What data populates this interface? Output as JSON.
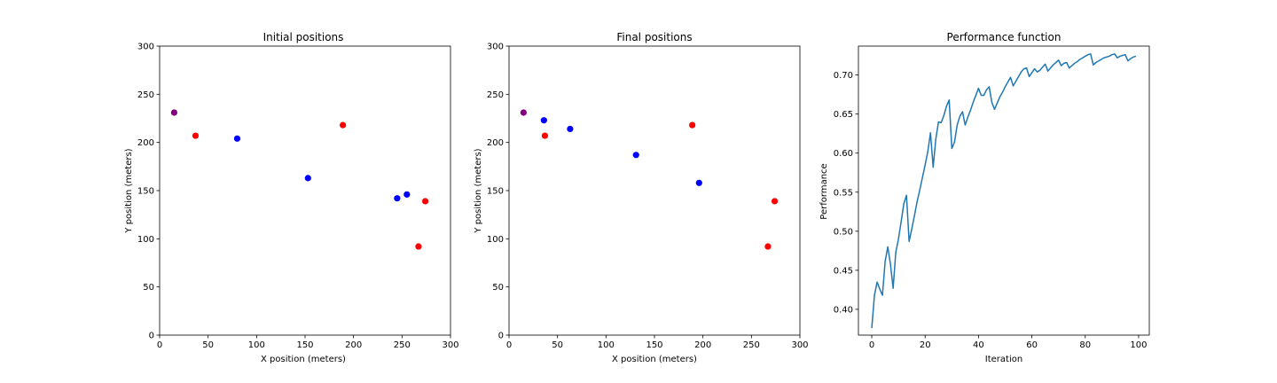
{
  "chart_data": [
    {
      "type": "scatter",
      "title": "Initial positions",
      "xlabel": "X position (meters)",
      "ylabel": "Y position (meters)",
      "xlim": [
        0,
        300
      ],
      "ylim": [
        0,
        300
      ],
      "xticks": [
        0,
        50,
        100,
        150,
        200,
        250,
        300
      ],
      "yticks": [
        0,
        50,
        100,
        150,
        200,
        250,
        300
      ],
      "grid": false,
      "series": [
        {
          "color": "#ff0000",
          "points": [
            [
              37,
              207
            ],
            [
              189,
              218
            ],
            [
              274,
              139
            ],
            [
              267,
              92
            ]
          ]
        },
        {
          "color": "#0000ff",
          "points": [
            [
              80,
              204
            ],
            [
              153,
              163
            ],
            [
              245,
              142
            ],
            [
              255,
              146
            ]
          ]
        },
        {
          "color": "#800080",
          "points": [
            [
              15,
              231
            ]
          ]
        }
      ]
    },
    {
      "type": "scatter",
      "title": "Final positions",
      "xlabel": "X position (meters)",
      "ylabel": "Y position (meters)",
      "xlim": [
        0,
        300
      ],
      "ylim": [
        0,
        300
      ],
      "xticks": [
        0,
        50,
        100,
        150,
        200,
        250,
        300
      ],
      "yticks": [
        0,
        50,
        100,
        150,
        200,
        250,
        300
      ],
      "grid": false,
      "series": [
        {
          "color": "#ff0000",
          "points": [
            [
              37,
              207
            ],
            [
              189,
              218
            ],
            [
              274,
              139
            ],
            [
              267,
              92
            ]
          ]
        },
        {
          "color": "#0000ff",
          "points": [
            [
              36,
              223
            ],
            [
              63,
              214
            ],
            [
              131,
              187
            ],
            [
              196,
              158
            ]
          ]
        },
        {
          "color": "#800080",
          "points": [
            [
              15,
              231
            ]
          ]
        }
      ]
    },
    {
      "type": "line",
      "title": "Performance function",
      "xlabel": "Iteration",
      "ylabel": "Performance",
      "xlim": [
        -5,
        104
      ],
      "ylim": [
        0.367,
        0.737
      ],
      "xticks": [
        0,
        20,
        40,
        60,
        80,
        100
      ],
      "yticks": [
        "0.40",
        "0.45",
        "0.50",
        "0.55",
        "0.60",
        "0.65",
        "0.70"
      ],
      "grid": false,
      "series": [
        {
          "color": "#1f77b4",
          "x": [
            0,
            1,
            2,
            3,
            4,
            5,
            6,
            7,
            8,
            9,
            10,
            11,
            12,
            13,
            14,
            15,
            16,
            17,
            18,
            19,
            20,
            21,
            22,
            23,
            24,
            25,
            26,
            27,
            28,
            29,
            30,
            31,
            32,
            33,
            34,
            35,
            36,
            37,
            38,
            39,
            40,
            41,
            42,
            43,
            44,
            45,
            46,
            47,
            48,
            49,
            50,
            51,
            52,
            53,
            54,
            55,
            56,
            57,
            58,
            59,
            60,
            61,
            62,
            63,
            64,
            65,
            66,
            67,
            68,
            69,
            70,
            71,
            72,
            73,
            74,
            75,
            76,
            77,
            78,
            79,
            80,
            81,
            82,
            83,
            84,
            85,
            86,
            87,
            88,
            89,
            90,
            91,
            92,
            93,
            94,
            95,
            96,
            97,
            98,
            99
          ],
          "y": [
            0.376,
            0.418,
            0.435,
            0.426,
            0.418,
            0.461,
            0.48,
            0.458,
            0.427,
            0.473,
            0.49,
            0.512,
            0.535,
            0.546,
            0.487,
            0.503,
            0.52,
            0.538,
            0.553,
            0.569,
            0.585,
            0.602,
            0.626,
            0.582,
            0.618,
            0.64,
            0.639,
            0.648,
            0.66,
            0.668,
            0.606,
            0.614,
            0.636,
            0.647,
            0.653,
            0.636,
            0.646,
            0.655,
            0.665,
            0.674,
            0.683,
            0.674,
            0.674,
            0.681,
            0.685,
            0.665,
            0.656,
            0.664,
            0.672,
            0.678,
            0.685,
            0.691,
            0.697,
            0.686,
            0.692,
            0.698,
            0.704,
            0.708,
            0.709,
            0.698,
            0.703,
            0.708,
            0.704,
            0.706,
            0.71,
            0.714,
            0.705,
            0.709,
            0.713,
            0.716,
            0.719,
            0.712,
            0.715,
            0.716,
            0.709,
            0.712,
            0.715,
            0.717,
            0.72,
            0.722,
            0.724,
            0.726,
            0.727,
            0.713,
            0.716,
            0.718,
            0.72,
            0.722,
            0.723,
            0.724,
            0.726,
            0.727,
            0.722,
            0.724,
            0.725,
            0.726,
            0.718,
            0.721,
            0.723,
            0.724
          ]
        }
      ]
    }
  ]
}
